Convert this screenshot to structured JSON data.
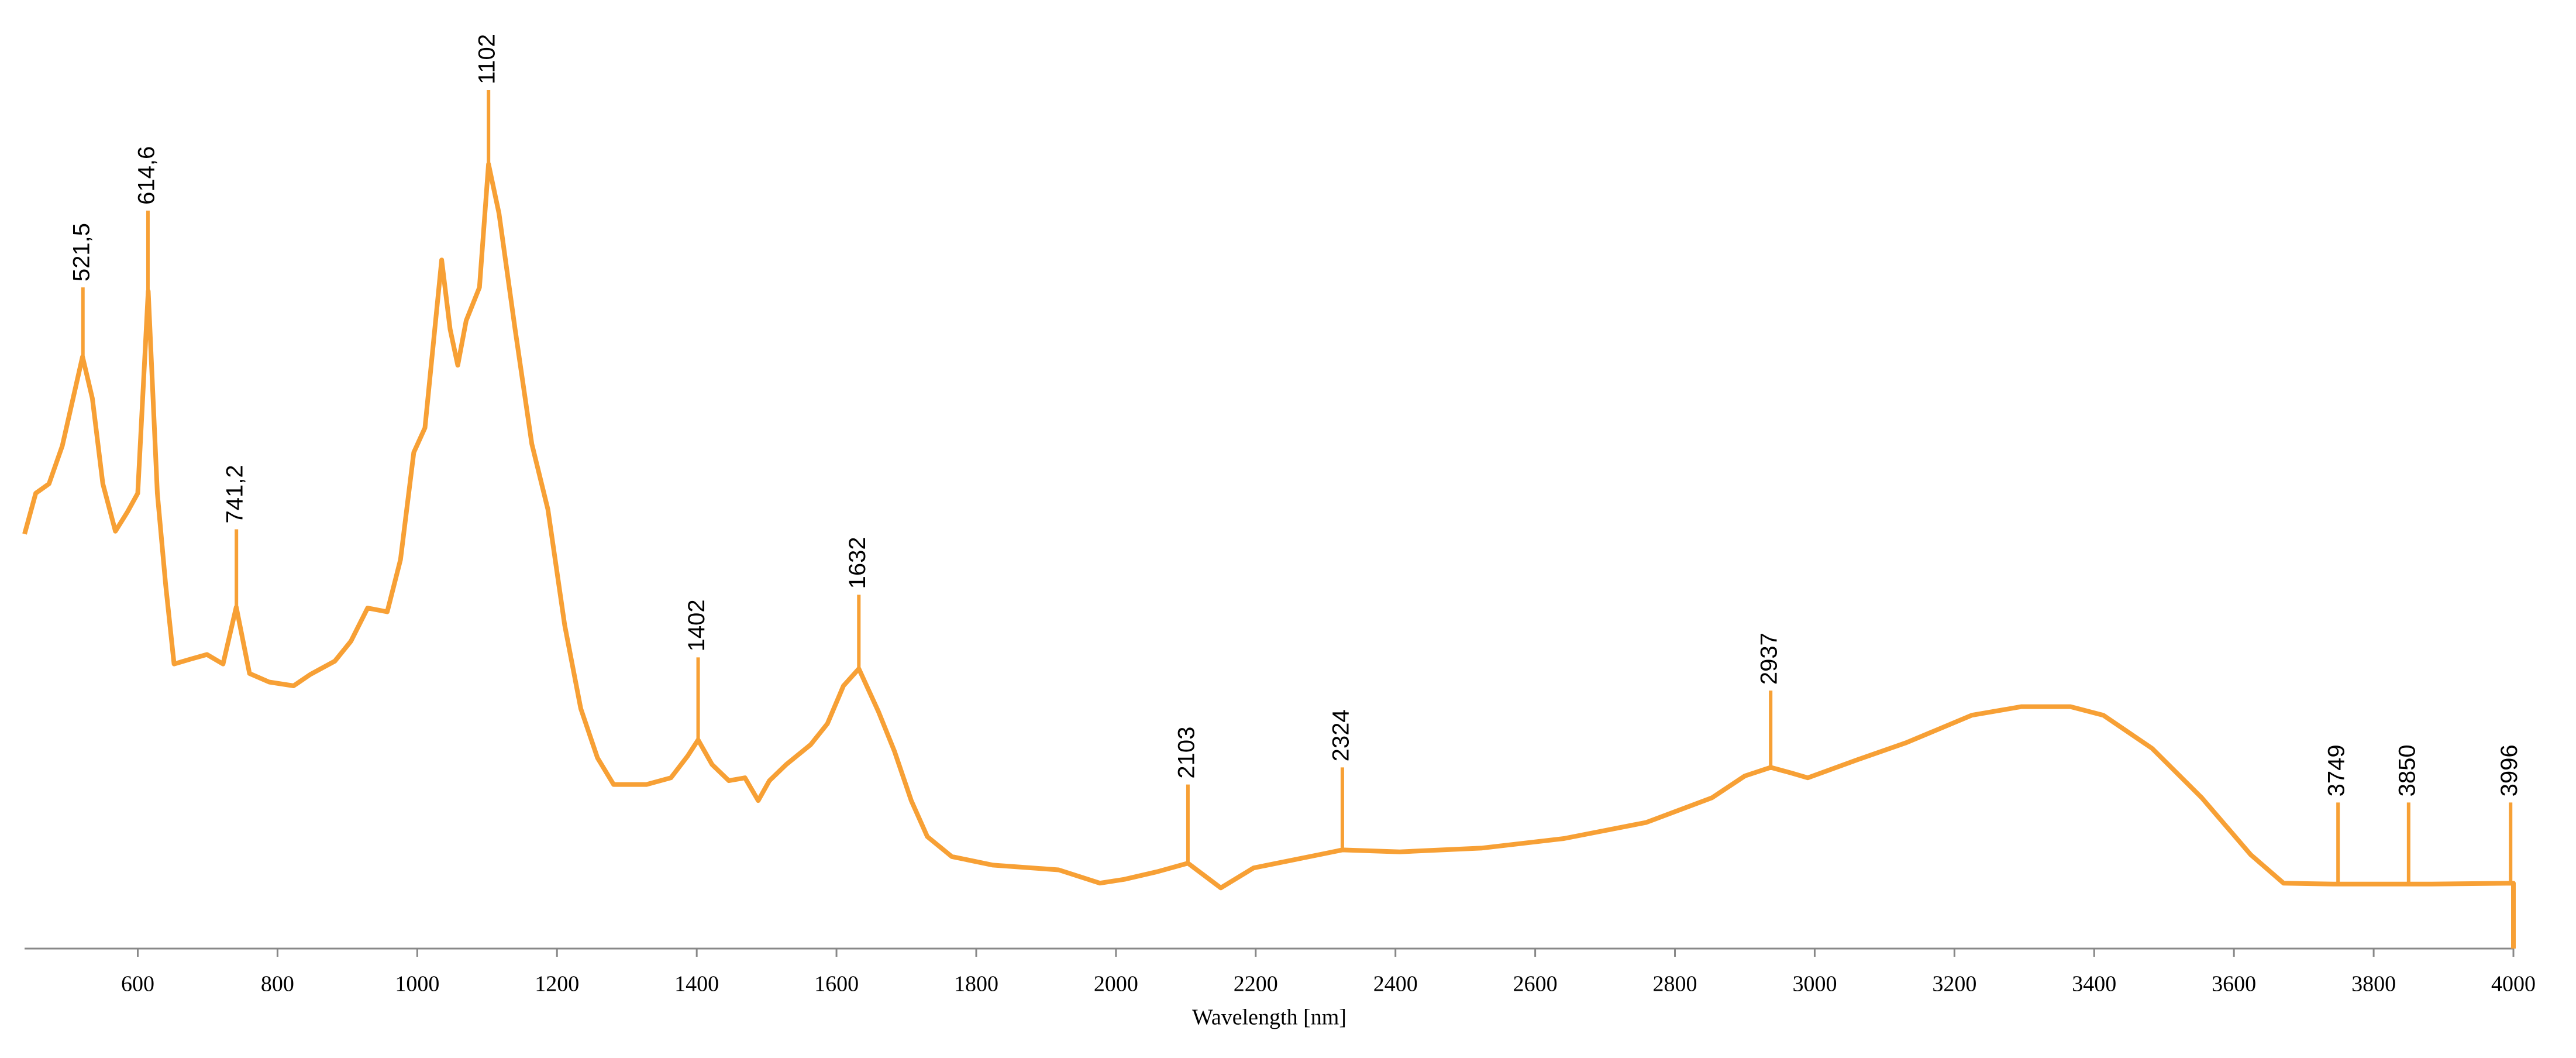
{
  "chart_data": {
    "type": "line",
    "x_label": "Wavelength [nm]",
    "xlim": [
      438,
      4000
    ],
    "xticks": [
      600,
      800,
      1000,
      1200,
      1400,
      1600,
      1800,
      2000,
      2200,
      2400,
      2600,
      2800,
      3000,
      3200,
      3400,
      3600,
      3800,
      4000
    ],
    "ylim": [
      0,
      100
    ],
    "series": [
      {
        "color": "#f7a035",
        "x": [
          438,
          454,
          473,
          492,
          521,
          535,
          550,
          568,
          585,
          600,
          615,
          628,
          640,
          652,
          675,
          699,
          722,
          741,
          760,
          788,
          823,
          847,
          882,
          905,
          929,
          957,
          976,
          995,
          1011,
          1035,
          1047,
          1058,
          1070,
          1089,
          1102,
          1117,
          1140,
          1164,
          1187,
          1211,
          1234,
          1258,
          1281,
          1328,
          1363,
          1387,
          1402,
          1422,
          1446,
          1469,
          1488,
          1504,
          1528,
          1563,
          1587,
          1610,
          1632,
          1660,
          1683,
          1707,
          1730,
          1765,
          1824,
          1918,
          1977,
          2012,
          2059,
          2103,
          2150,
          2197,
          2291,
          2324,
          2406,
          2524,
          2641,
          2759,
          2853,
          2900,
          2937,
          2967,
          2990,
          3061,
          3131,
          3225,
          3296,
          3366,
          3413,
          3483,
          3554,
          3624,
          3671,
          3742,
          3883,
          4000,
          4000
        ],
        "values": [
          43.7,
          48,
          49,
          53,
          62.4,
          58,
          49,
          44,
          46,
          48,
          69.3,
          48,
          38.3,
          30.0,
          30.5,
          31,
          30.0,
          36,
          29,
          28.1,
          27.7,
          28.9,
          30.3,
          32.4,
          35.9,
          35.5,
          41,
          52.3,
          54.9,
          72.6,
          65.3,
          61.5,
          66.2,
          69.7,
          82.7,
          77.5,
          65.3,
          53.2,
          46.3,
          34.1,
          25.3,
          20.1,
          17.3,
          17.3,
          18.0,
          20.3,
          22.0,
          19.4,
          17.7,
          18.0,
          15.6,
          17.7,
          19.4,
          21.5,
          23.7,
          27.7,
          29.5,
          25.0,
          20.8,
          15.6,
          11.8,
          9.7,
          8.8,
          8.3,
          6.9,
          7.3,
          8.1,
          9.0,
          6.4,
          8.5,
          9.9,
          10.4,
          10.2,
          10.6,
          11.6,
          13.3,
          15.9,
          18.2,
          19.1,
          18.5,
          18.0,
          19.9,
          21.7,
          24.6,
          25.5,
          25.5,
          24.6,
          21.1,
          15.9,
          9.9,
          6.9,
          6.8,
          6.8,
          6.9,
          0
        ]
      }
    ],
    "annotations": [
      {
        "x": 521.5,
        "label": "521,5",
        "y": 62.4,
        "y_top": 69.7
      },
      {
        "x": 614.6,
        "label": "614,6",
        "y": 69.3,
        "y_top": 77.8
      },
      {
        "x": 741.2,
        "label": "741,2",
        "y": 36,
        "y_top": 44.2
      },
      {
        "x": 1102,
        "label": "1102",
        "y": 82.7,
        "y_top": 90.5
      },
      {
        "x": 1402,
        "label": "1402",
        "y": 22.0,
        "y_top": 30.7
      },
      {
        "x": 1632,
        "label": "1632",
        "y": 29.5,
        "y_top": 37.3
      },
      {
        "x": 2103,
        "label": "2103",
        "y": 9.0,
        "y_top": 17.3
      },
      {
        "x": 2324,
        "label": "2324",
        "y": 10.4,
        "y_top": 19.1
      },
      {
        "x": 2937,
        "label": "2937",
        "y": 19.1,
        "y_top": 27.2
      },
      {
        "x": 3749,
        "label": "3749",
        "y": 6.8,
        "y_top": 15.4
      },
      {
        "x": 3850,
        "label": "3850",
        "y": 6.8,
        "y_top": 15.4
      },
      {
        "x": 3996,
        "label": "3996",
        "y": 6.9,
        "y_top": 15.4
      }
    ]
  }
}
